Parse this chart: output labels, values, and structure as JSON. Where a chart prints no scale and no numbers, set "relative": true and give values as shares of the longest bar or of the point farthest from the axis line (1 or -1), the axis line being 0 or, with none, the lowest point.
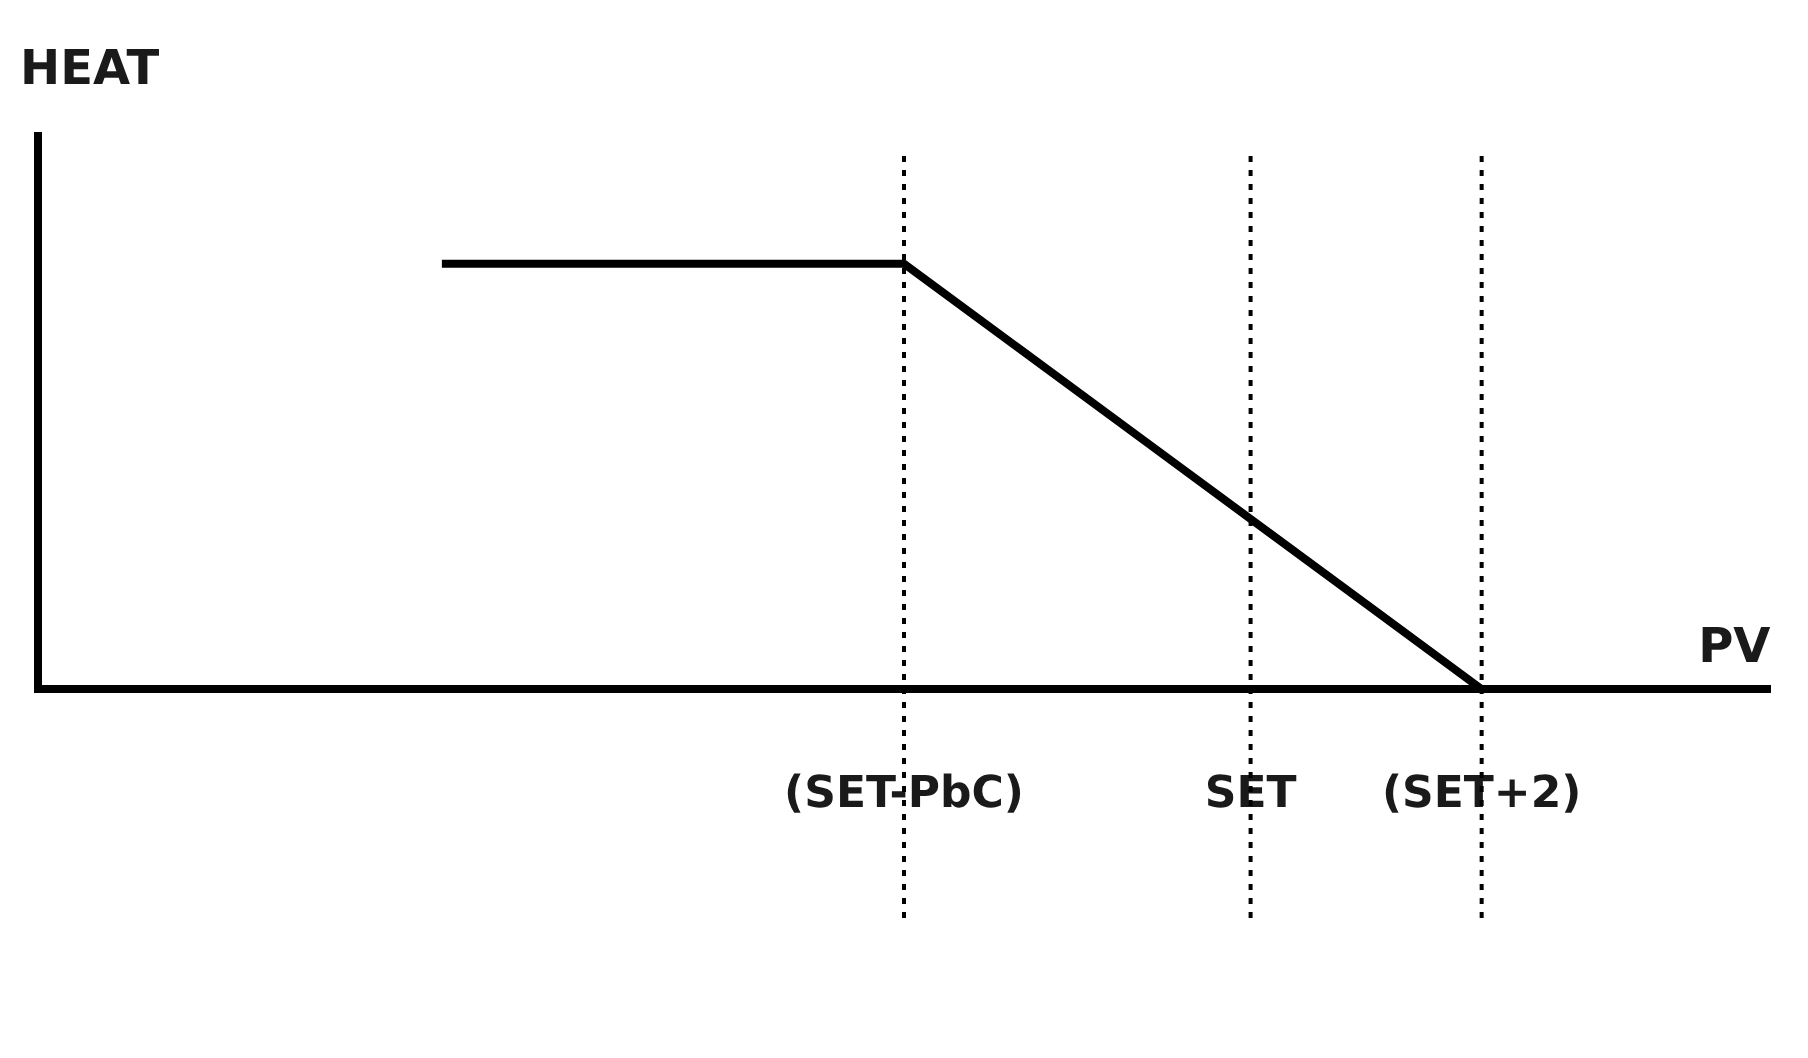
{
  "chart_data": {
    "type": "line",
    "relative": true,
    "xlabel": "PV",
    "ylabel": "HEAT",
    "categories": [
      null,
      null,
      null,
      null,
      null,
      null,
      null,
      "(SET-PbC)",
      null,
      null,
      "SET",
      null,
      "(SET+2)",
      null,
      null
    ],
    "series": [
      {
        "color": "#000000",
        "values": [
          null,
          null,
          null,
          1,
          1,
          1,
          1,
          1,
          0.8,
          0.6,
          0.4,
          0.2,
          0,
          null,
          null
        ]
      }
    ],
    "ref_lines": [
      {
        "axis": "x",
        "value": "(SET-PbC)",
        "line_style": "dotted",
        "color": "#000000"
      },
      {
        "axis": "x",
        "value": "SET",
        "line_style": "dotted",
        "color": "#000000"
      },
      {
        "axis": "x",
        "value": "(SET+2)",
        "line_style": "dotted",
        "color": "#000000"
      }
    ],
    "grid": false,
    "legend": false,
    "marker": "none",
    "line_style": "solid"
  }
}
